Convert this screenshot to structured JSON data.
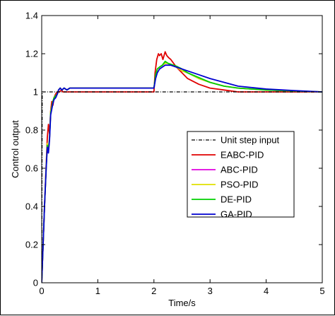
{
  "chart_data": {
    "type": "line",
    "xlabel": "Time/s",
    "ylabel": "Control output",
    "xlim": [
      0,
      5
    ],
    "ylim": [
      0,
      1.4
    ],
    "xticks": [
      0,
      1,
      2,
      3,
      4,
      5
    ],
    "yticks": [
      0,
      0.2,
      0.4,
      0.6,
      0.8,
      1,
      1.2,
      1.4
    ],
    "xtick_labels": [
      "0",
      "1",
      "2",
      "3",
      "4",
      "5"
    ],
    "ytick_labels": [
      "0",
      "0.2",
      "0.4",
      "0.6",
      "0.8",
      "1",
      "1.2",
      "1.4"
    ],
    "grid": false,
    "legend_position": "center-right",
    "series": [
      {
        "name": "Unit step input",
        "color": "#000000",
        "style": "dashdot",
        "x": [
          0,
          0.01,
          5
        ],
        "y": [
          0,
          1,
          1
        ]
      },
      {
        "name": "EABC-PID",
        "color": "#e00000",
        "style": "solid",
        "x": [
          0,
          0.05,
          0.08,
          0.1,
          0.12,
          0.14,
          0.16,
          0.18,
          0.2,
          0.22,
          0.25,
          0.28,
          0.3,
          0.32,
          0.35,
          0.38,
          0.4,
          0.45,
          0.5,
          0.6,
          0.8,
          1.0,
          1.5,
          1.99,
          2.0,
          2.02,
          2.05,
          2.08,
          2.1,
          2.13,
          2.16,
          2.2,
          2.23,
          2.26,
          2.3,
          2.35,
          2.4,
          2.5,
          2.6,
          2.8,
          3.0,
          3.25,
          3.5,
          4.0,
          4.5,
          5.0
        ],
        "y": [
          0,
          0.4,
          0.62,
          0.76,
          0.83,
          0.78,
          0.9,
          0.95,
          0.93,
          0.97,
          0.99,
          1.0,
          1.0,
          1.0,
          1.01,
          1.0,
          1.0,
          1.0,
          1.0,
          1.0,
          1.0,
          1.0,
          1.0,
          1.0,
          1.0,
          1.1,
          1.17,
          1.2,
          1.19,
          1.2,
          1.17,
          1.21,
          1.19,
          1.18,
          1.17,
          1.15,
          1.13,
          1.1,
          1.07,
          1.04,
          1.02,
          1.01,
          1.0,
          1.0,
          1.0,
          1.0
        ]
      },
      {
        "name": "ABC-PID",
        "color": "#e000e0",
        "style": "solid",
        "x": [
          0,
          0.05,
          0.08,
          0.1,
          0.12,
          0.14,
          0.16,
          0.18,
          0.2,
          0.22,
          0.25,
          0.28,
          0.3,
          0.33,
          0.36,
          0.4,
          0.45,
          0.5,
          0.6,
          0.8,
          1.0,
          1.5,
          1.99,
          2.0,
          2.03,
          2.06,
          2.1,
          2.15,
          2.2,
          2.25,
          2.3,
          2.4,
          2.5,
          2.6,
          2.8,
          3.0,
          3.25,
          3.5,
          4.0,
          4.5,
          5.0
        ],
        "y": [
          0,
          0.4,
          0.61,
          0.73,
          0.7,
          0.76,
          0.9,
          0.92,
          0.95,
          0.97,
          0.98,
          0.99,
          1.01,
          1.02,
          1.01,
          1.02,
          1.01,
          1.02,
          1.02,
          1.02,
          1.02,
          1.02,
          1.02,
          1.02,
          1.08,
          1.12,
          1.13,
          1.14,
          1.15,
          1.15,
          1.14,
          1.13,
          1.11,
          1.1,
          1.07,
          1.05,
          1.03,
          1.02,
          1.01,
          1.005,
          1.0
        ]
      },
      {
        "name": "PSO-PID",
        "color": "#e0e000",
        "style": "solid",
        "x": [
          0,
          0.05,
          0.08,
          0.1,
          0.12,
          0.14,
          0.16,
          0.18,
          0.2,
          0.22,
          0.25,
          0.28,
          0.3,
          0.33,
          0.36,
          0.4,
          0.45,
          0.5,
          0.6,
          0.8,
          1.0,
          1.5,
          1.99,
          2.0,
          2.03,
          2.06,
          2.1,
          2.15,
          2.2,
          2.25,
          2.3,
          2.4,
          2.5,
          2.6,
          2.8,
          3.0,
          3.25,
          3.5,
          4.0,
          4.5,
          5.0
        ],
        "y": [
          0,
          0.4,
          0.61,
          0.73,
          0.7,
          0.76,
          0.9,
          0.92,
          0.95,
          0.97,
          0.98,
          0.99,
          1.01,
          1.02,
          1.01,
          1.02,
          1.01,
          1.02,
          1.02,
          1.02,
          1.02,
          1.02,
          1.02,
          1.02,
          1.08,
          1.12,
          1.13,
          1.14,
          1.15,
          1.15,
          1.14,
          1.13,
          1.11,
          1.1,
          1.07,
          1.05,
          1.03,
          1.02,
          1.01,
          1.005,
          1.0
        ]
      },
      {
        "name": "DE-PID",
        "color": "#00d000",
        "style": "solid",
        "x": [
          0,
          0.05,
          0.08,
          0.1,
          0.12,
          0.14,
          0.16,
          0.18,
          0.2,
          0.22,
          0.25,
          0.28,
          0.3,
          0.33,
          0.36,
          0.4,
          0.45,
          0.5,
          0.6,
          0.8,
          1.0,
          1.5,
          1.99,
          2.0,
          2.03,
          2.06,
          2.1,
          2.15,
          2.2,
          2.25,
          2.3,
          2.4,
          2.5,
          2.6,
          2.8,
          3.0,
          3.25,
          3.5,
          4.0,
          4.5,
          5.0
        ],
        "y": [
          0,
          0.4,
          0.6,
          0.72,
          0.69,
          0.76,
          0.89,
          0.92,
          0.95,
          0.97,
          0.98,
          0.99,
          1.01,
          1.02,
          1.01,
          1.02,
          1.01,
          1.02,
          1.02,
          1.02,
          1.02,
          1.02,
          1.02,
          1.02,
          1.09,
          1.12,
          1.13,
          1.14,
          1.16,
          1.15,
          1.145,
          1.135,
          1.12,
          1.1,
          1.075,
          1.05,
          1.03,
          1.02,
          1.01,
          1.005,
          1.0
        ]
      },
      {
        "name": "GA-PID",
        "color": "#0000d0",
        "style": "solid",
        "x": [
          0,
          0.05,
          0.08,
          0.1,
          0.12,
          0.14,
          0.16,
          0.18,
          0.2,
          0.22,
          0.25,
          0.28,
          0.3,
          0.33,
          0.36,
          0.4,
          0.45,
          0.5,
          0.6,
          0.8,
          1.0,
          1.5,
          1.99,
          2.0,
          2.03,
          2.06,
          2.1,
          2.15,
          2.2,
          2.25,
          2.3,
          2.4,
          2.5,
          2.6,
          2.8,
          3.0,
          3.25,
          3.5,
          4.0,
          4.5,
          5.0
        ],
        "y": [
          0,
          0.4,
          0.6,
          0.71,
          0.68,
          0.75,
          0.88,
          0.91,
          0.94,
          0.96,
          0.97,
          0.99,
          1.01,
          1.02,
          1.01,
          1.02,
          1.01,
          1.02,
          1.02,
          1.02,
          1.02,
          1.02,
          1.02,
          1.02,
          1.07,
          1.1,
          1.12,
          1.13,
          1.14,
          1.14,
          1.14,
          1.13,
          1.12,
          1.11,
          1.09,
          1.07,
          1.05,
          1.03,
          1.015,
          1.007,
          1.0
        ]
      }
    ]
  }
}
